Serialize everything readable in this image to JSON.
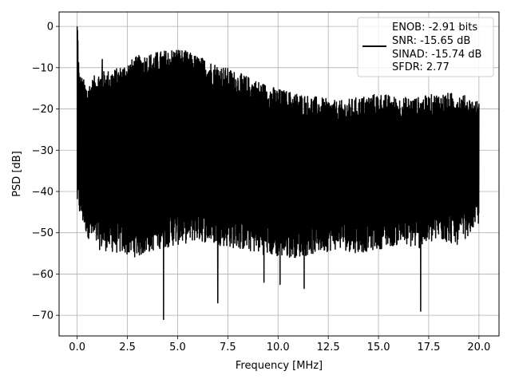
{
  "chart_data": {
    "type": "line",
    "title": "",
    "xlabel": "Frequency [MHz]",
    "ylabel": "PSD [dB]",
    "xlim": [
      -0.9,
      21.0
    ],
    "ylim": [
      -75,
      3.5
    ],
    "xticks": [
      0.0,
      2.5,
      5.0,
      7.5,
      10.0,
      12.5,
      15.0,
      17.5,
      20.0
    ],
    "xtick_labels": [
      "0.0",
      "2.5",
      "5.0",
      "7.5",
      "10.0",
      "12.5",
      "15.0",
      "17.5",
      "20.0"
    ],
    "yticks": [
      0,
      -10,
      -20,
      -30,
      -40,
      -50,
      -60,
      -70
    ],
    "ytick_labels": [
      "0",
      "−10",
      "−20",
      "−30",
      "−40",
      "−50",
      "−60",
      "−70"
    ],
    "grid": true,
    "legend_position": "top-right",
    "legend_lines": [
      "ENOB: -2.91 bits",
      "SNR: -15.65 dB",
      "SINAD: -15.74 dB",
      "SFDR: 2.77"
    ],
    "series": [
      {
        "color": "#000000",
        "description": "dense noisy PSD spanning 0 to 20 MHz; peak 0 dB at 0 MHz, mostly between -20 and -45 dB",
        "x_range": [
          0.0,
          20.0
        ],
        "envelope": {
          "x": [
            0.0,
            0.1,
            0.5,
            1.0,
            2.0,
            3.0,
            4.0,
            5.0,
            6.0,
            7.0,
            8.0,
            9.0,
            10.0,
            11.0,
            12.0,
            13.0,
            14.0,
            15.0,
            16.0,
            17.0,
            18.0,
            19.0,
            20.0
          ],
          "upper": [
            0,
            -15,
            -18,
            -15,
            -14,
            -11,
            -10,
            -9,
            -11,
            -13,
            -15,
            -17,
            -19,
            -20,
            -21,
            -22,
            -21,
            -20,
            -21,
            -21,
            -20,
            -20,
            -22
          ],
          "lower": [
            -40,
            -42,
            -47,
            -50,
            -51,
            -52,
            -50,
            -49,
            -48,
            -49,
            -50,
            -51,
            -52,
            -52,
            -51,
            -50,
            -51,
            -50,
            -49,
            -50,
            -48,
            -49,
            -44
          ]
        },
        "notable_points": [
          {
            "x": 0.0,
            "y": 0
          },
          {
            "x": 1.25,
            "y": -8
          },
          {
            "x": 4.3,
            "y": -71
          },
          {
            "x": 7.0,
            "y": -67
          },
          {
            "x": 11.3,
            "y": -63.5
          },
          {
            "x": 10.1,
            "y": -62.5
          },
          {
            "x": 9.3,
            "y": -62
          },
          {
            "x": 17.1,
            "y": -69
          }
        ]
      }
    ]
  }
}
